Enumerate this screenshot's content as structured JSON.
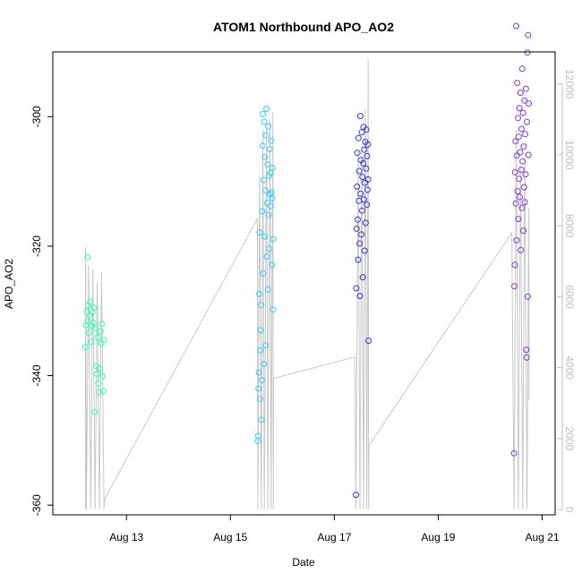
{
  "chart_data": {
    "type": "scatter",
    "title": "ATOM1 Northbound APO_AO2",
    "xlabel": "Date",
    "ylabel": "APO_AO2",
    "xlim": [
      "2017-08-11T14:00",
      "2017-08-21T06:00"
    ],
    "ylim": [
      -361.5,
      -290
    ],
    "y2lim": [
      -150,
      12900
    ],
    "x_ticks": [
      {
        "date": "2017-08-13",
        "label": "Aug 13"
      },
      {
        "date": "2017-08-15",
        "label": "Aug 15"
      },
      {
        "date": "2017-08-17",
        "label": "Aug 17"
      },
      {
        "date": "2017-08-19",
        "label": "Aug 19"
      },
      {
        "date": "2017-08-21",
        "label": "Aug 21"
      }
    ],
    "y_ticks": [
      -360,
      -340,
      -320,
      -300
    ],
    "y2_ticks": [
      0,
      2000,
      4000,
      6000,
      8000,
      10000,
      12000
    ],
    "grid": false,
    "series": [
      {
        "color": "#33ffbb",
        "marker": "circle",
        "points": [
          {
            "x": "2017-08-12T05:00",
            "y": -335.6
          },
          {
            "x": "2017-08-12T05:20",
            "y": -332.2
          },
          {
            "x": "2017-08-12T05:40",
            "y": -330.1
          },
          {
            "x": "2017-08-12T06:00",
            "y": -321.7
          },
          {
            "x": "2017-08-12T06:10",
            "y": -331.6
          },
          {
            "x": "2017-08-12T06:20",
            "y": -329.2
          },
          {
            "x": "2017-08-12T06:40",
            "y": -333.4
          },
          {
            "x": "2017-08-12T07:00",
            "y": -330.7
          },
          {
            "x": "2017-08-12T07:20",
            "y": -328.6
          },
          {
            "x": "2017-08-12T07:40",
            "y": -334.8
          },
          {
            "x": "2017-08-12T08:00",
            "y": -332.3
          },
          {
            "x": "2017-08-12T08:20",
            "y": -330.2
          },
          {
            "x": "2017-08-12T08:40",
            "y": -331.8
          },
          {
            "x": "2017-08-12T09:00",
            "y": -329.5
          },
          {
            "x": "2017-08-12T09:20",
            "y": -345.6
          },
          {
            "x": "2017-08-12T09:40",
            "y": -332.7
          },
          {
            "x": "2017-08-12T10:00",
            "y": -338.5
          },
          {
            "x": "2017-08-12T10:20",
            "y": -339.7
          },
          {
            "x": "2017-08-12T10:40",
            "y": -334.1
          },
          {
            "x": "2017-08-12T11:00",
            "y": -341.2
          },
          {
            "x": "2017-08-12T11:20",
            "y": -342.6
          },
          {
            "x": "2017-08-12T11:40",
            "y": -338.9
          },
          {
            "x": "2017-08-12T12:00",
            "y": -333.2
          },
          {
            "x": "2017-08-12T12:20",
            "y": -335.0
          },
          {
            "x": "2017-08-12T12:40",
            "y": -332.0
          },
          {
            "x": "2017-08-12T13:00",
            "y": -340.1
          },
          {
            "x": "2017-08-12T13:20",
            "y": -342.4
          },
          {
            "x": "2017-08-12T13:40",
            "y": -334.5
          }
        ]
      },
      {
        "color": "#33ccff",
        "marker": "circle",
        "points": [
          {
            "x": "2017-08-15T12:40",
            "y": -350.1
          },
          {
            "x": "2017-08-15T12:50",
            "y": -349.3
          },
          {
            "x": "2017-08-15T13:00",
            "y": -342.0
          },
          {
            "x": "2017-08-15T13:10",
            "y": -339.5
          },
          {
            "x": "2017-08-15T13:20",
            "y": -327.4
          },
          {
            "x": "2017-08-15T13:30",
            "y": -317.9
          },
          {
            "x": "2017-08-15T13:40",
            "y": -343.6
          },
          {
            "x": "2017-08-15T13:50",
            "y": -336.1
          },
          {
            "x": "2017-08-15T14:00",
            "y": -333.0
          },
          {
            "x": "2017-08-15T14:10",
            "y": -329.1
          },
          {
            "x": "2017-08-15T14:20",
            "y": -346.8
          },
          {
            "x": "2017-08-15T14:30",
            "y": -340.7
          },
          {
            "x": "2017-08-15T14:40",
            "y": -314.6
          },
          {
            "x": "2017-08-15T14:50",
            "y": -304.5
          },
          {
            "x": "2017-08-15T15:00",
            "y": -299.6
          },
          {
            "x": "2017-08-15T15:10",
            "y": -324.2
          },
          {
            "x": "2017-08-15T15:20",
            "y": -309.8
          },
          {
            "x": "2017-08-15T15:30",
            "y": -338.2
          },
          {
            "x": "2017-08-15T15:40",
            "y": -300.8
          },
          {
            "x": "2017-08-15T15:50",
            "y": -318.5
          },
          {
            "x": "2017-08-15T16:00",
            "y": -306.2
          },
          {
            "x": "2017-08-15T16:10",
            "y": -311.4
          },
          {
            "x": "2017-08-15T16:20",
            "y": -335.3
          },
          {
            "x": "2017-08-15T16:30",
            "y": -302.9
          },
          {
            "x": "2017-08-15T16:40",
            "y": -298.8
          },
          {
            "x": "2017-08-15T16:50",
            "y": -321.6
          },
          {
            "x": "2017-08-15T17:00",
            "y": -313.3
          },
          {
            "x": "2017-08-15T17:10",
            "y": -307.4
          },
          {
            "x": "2017-08-15T17:20",
            "y": -326.7
          },
          {
            "x": "2017-08-15T17:30",
            "y": -301.5
          },
          {
            "x": "2017-08-15T17:40",
            "y": -315.2
          },
          {
            "x": "2017-08-15T17:50",
            "y": -309.1
          },
          {
            "x": "2017-08-15T18:00",
            "y": -320.4
          },
          {
            "x": "2017-08-15T18:10",
            "y": -305.0
          },
          {
            "x": "2017-08-15T18:20",
            "y": -312.0
          },
          {
            "x": "2017-08-15T18:30",
            "y": -308.7
          },
          {
            "x": "2017-08-15T18:40",
            "y": -313.8
          },
          {
            "x": "2017-08-15T18:50",
            "y": -303.7
          },
          {
            "x": "2017-08-15T19:00",
            "y": -311.7
          },
          {
            "x": "2017-08-15T19:10",
            "y": -322.9
          },
          {
            "x": "2017-08-15T19:20",
            "y": -312.6
          },
          {
            "x": "2017-08-15T19:30",
            "y": -307.9
          },
          {
            "x": "2017-08-15T19:40",
            "y": -329.8
          },
          {
            "x": "2017-08-15T19:50",
            "y": -318.9
          }
        ]
      },
      {
        "color": "#3333ee",
        "marker": "circle",
        "points": [
          {
            "x": "2017-08-17T10:00",
            "y": -358.4
          },
          {
            "x": "2017-08-17T10:10",
            "y": -326.5
          },
          {
            "x": "2017-08-17T10:20",
            "y": -317.3
          },
          {
            "x": "2017-08-17T10:30",
            "y": -310.8
          },
          {
            "x": "2017-08-17T10:40",
            "y": -305.6
          },
          {
            "x": "2017-08-17T10:50",
            "y": -315.9
          },
          {
            "x": "2017-08-17T11:00",
            "y": -322.1
          },
          {
            "x": "2017-08-17T11:10",
            "y": -303.3
          },
          {
            "x": "2017-08-17T11:20",
            "y": -313.0
          },
          {
            "x": "2017-08-17T11:30",
            "y": -308.4
          },
          {
            "x": "2017-08-17T11:40",
            "y": -319.6
          },
          {
            "x": "2017-08-17T11:50",
            "y": -327.7
          },
          {
            "x": "2017-08-17T12:00",
            "y": -299.9
          },
          {
            "x": "2017-08-17T12:10",
            "y": -311.9
          },
          {
            "x": "2017-08-17T12:20",
            "y": -306.7
          },
          {
            "x": "2017-08-17T12:30",
            "y": -318.2
          },
          {
            "x": "2017-08-17T12:40",
            "y": -302.4
          },
          {
            "x": "2017-08-17T12:50",
            "y": -314.5
          },
          {
            "x": "2017-08-17T13:00",
            "y": -309.3
          },
          {
            "x": "2017-08-17T13:10",
            "y": -324.8
          },
          {
            "x": "2017-08-17T13:20",
            "y": -307.2
          },
          {
            "x": "2017-08-17T13:30",
            "y": -301.6
          },
          {
            "x": "2017-08-17T13:40",
            "y": -312.8
          },
          {
            "x": "2017-08-17T13:50",
            "y": -305.1
          },
          {
            "x": "2017-08-17T14:00",
            "y": -320.7
          },
          {
            "x": "2017-08-17T14:10",
            "y": -310.2
          },
          {
            "x": "2017-08-17T14:20",
            "y": -303.9
          },
          {
            "x": "2017-08-17T14:30",
            "y": -316.4
          },
          {
            "x": "2017-08-17T14:40",
            "y": -308.0
          },
          {
            "x": "2017-08-17T14:50",
            "y": -302.0
          },
          {
            "x": "2017-08-17T15:00",
            "y": -313.6
          },
          {
            "x": "2017-08-17T15:10",
            "y": -306.1
          },
          {
            "x": "2017-08-17T15:20",
            "y": -311.3
          },
          {
            "x": "2017-08-17T15:30",
            "y": -304.3
          },
          {
            "x": "2017-08-17T15:40",
            "y": -309.7
          },
          {
            "x": "2017-08-17T15:50",
            "y": -334.6
          }
        ]
      },
      {
        "color": "#8833ee",
        "marker": "circle",
        "points": [
          {
            "x": "2017-08-20T11:00",
            "y": -352.0
          },
          {
            "x": "2017-08-20T11:10",
            "y": -326.2
          },
          {
            "x": "2017-08-20T11:20",
            "y": -322.9
          },
          {
            "x": "2017-08-20T11:30",
            "y": -308.6
          },
          {
            "x": "2017-08-20T11:40",
            "y": -303.8
          },
          {
            "x": "2017-08-20T11:50",
            "y": -313.4
          },
          {
            "x": "2017-08-20T12:00",
            "y": -286.0
          },
          {
            "x": "2017-08-20T12:10",
            "y": -319.1
          },
          {
            "x": "2017-08-20T12:20",
            "y": -306.0
          },
          {
            "x": "2017-08-20T12:30",
            "y": -294.8
          },
          {
            "x": "2017-08-20T12:40",
            "y": -311.5
          },
          {
            "x": "2017-08-20T12:50",
            "y": -300.2
          },
          {
            "x": "2017-08-20T13:00",
            "y": -315.8
          },
          {
            "x": "2017-08-20T13:10",
            "y": -303.1
          },
          {
            "x": "2017-08-20T13:20",
            "y": -309.6
          },
          {
            "x": "2017-08-20T13:30",
            "y": -298.7
          },
          {
            "x": "2017-08-20T13:40",
            "y": -312.4
          },
          {
            "x": "2017-08-20T13:50",
            "y": -305.5
          },
          {
            "x": "2017-08-20T14:00",
            "y": -296.3
          },
          {
            "x": "2017-08-20T14:10",
            "y": -320.6
          },
          {
            "x": "2017-08-20T14:20",
            "y": -308.2
          },
          {
            "x": "2017-08-20T14:30",
            "y": -301.9
          },
          {
            "x": "2017-08-20T14:40",
            "y": -314.1
          },
          {
            "x": "2017-08-20T14:50",
            "y": -292.6
          },
          {
            "x": "2017-08-20T15:00",
            "y": -306.9
          },
          {
            "x": "2017-08-20T15:10",
            "y": -299.4
          },
          {
            "x": "2017-08-20T15:20",
            "y": -317.6
          },
          {
            "x": "2017-08-20T15:30",
            "y": -304.6
          },
          {
            "x": "2017-08-20T15:40",
            "y": -310.9
          },
          {
            "x": "2017-08-20T15:50",
            "y": -297.5
          },
          {
            "x": "2017-08-20T16:00",
            "y": -313.2
          },
          {
            "x": "2017-08-20T16:10",
            "y": -302.7
          },
          {
            "x": "2017-08-20T16:20",
            "y": -308.9
          },
          {
            "x": "2017-08-20T16:30",
            "y": -295.7
          },
          {
            "x": "2017-08-20T16:40",
            "y": -336.0
          },
          {
            "x": "2017-08-20T16:50",
            "y": -337.2
          },
          {
            "x": "2017-08-20T17:00",
            "y": -300.8
          },
          {
            "x": "2017-08-20T17:10",
            "y": -290.1
          },
          {
            "x": "2017-08-20T17:20",
            "y": -327.8
          },
          {
            "x": "2017-08-20T17:30",
            "y": -287.4
          },
          {
            "x": "2017-08-20T17:40",
            "y": -305.9
          },
          {
            "x": "2017-08-20T17:50",
            "y": -298.0
          }
        ]
      }
    ],
    "gray_trace": {
      "color": "#c8c8c8",
      "points": [
        {
          "x": "2017-08-12T05:00",
          "y2": 11
        },
        {
          "x": "2017-08-12T05:10",
          "y2": 7400
        },
        {
          "x": "2017-08-12T05:30",
          "y2": 11
        },
        {
          "x": "2017-08-12T06:30",
          "y2": 6900
        },
        {
          "x": "2017-08-12T07:30",
          "y2": 11
        },
        {
          "x": "2017-08-12T08:30",
          "y2": 6800
        },
        {
          "x": "2017-08-12T09:30",
          "y2": 11
        },
        {
          "x": "2017-08-12T10:30",
          "y2": 6400
        },
        {
          "x": "2017-08-12T11:30",
          "y2": 11
        },
        {
          "x": "2017-08-12T12:30",
          "y2": 6700
        },
        {
          "x": "2017-08-12T13:40",
          "y2": 11
        },
        {
          "x": "2017-08-12T14:00",
          "y2": 300
        },
        {
          "x": "2017-08-15T12:30",
          "y2": 8200
        },
        {
          "x": "2017-08-15T12:40",
          "y2": 11
        },
        {
          "x": "2017-08-15T13:30",
          "y2": 9400
        },
        {
          "x": "2017-08-15T14:20",
          "y2": 11
        },
        {
          "x": "2017-08-15T15:00",
          "y2": 10700
        },
        {
          "x": "2017-08-15T15:40",
          "y2": 11
        },
        {
          "x": "2017-08-15T16:40",
          "y2": 10800
        },
        {
          "x": "2017-08-15T17:20",
          "y2": 11
        },
        {
          "x": "2017-08-15T18:20",
          "y2": 11000
        },
        {
          "x": "2017-08-15T18:50",
          "y2": 11
        },
        {
          "x": "2017-08-15T19:40",
          "y2": 11200
        },
        {
          "x": "2017-08-15T19:50",
          "y2": 11
        },
        {
          "x": "2017-08-15T20:00",
          "y2": 3700
        },
        {
          "x": "2017-08-17T09:30",
          "y2": 4300
        },
        {
          "x": "2017-08-17T10:00",
          "y2": 11
        },
        {
          "x": "2017-08-17T11:00",
          "y2": 10100
        },
        {
          "x": "2017-08-17T11:50",
          "y2": 11
        },
        {
          "x": "2017-08-17T12:40",
          "y2": 10300
        },
        {
          "x": "2017-08-17T13:30",
          "y2": 11
        },
        {
          "x": "2017-08-17T14:20",
          "y2": 11300
        },
        {
          "x": "2017-08-17T15:00",
          "y2": 11
        },
        {
          "x": "2017-08-17T15:40",
          "y2": 12700
        },
        {
          "x": "2017-08-17T15:50",
          "y2": 11
        },
        {
          "x": "2017-08-17T16:00",
          "y2": 1800
        },
        {
          "x": "2017-08-20T10:00",
          "y2": 7800
        },
        {
          "x": "2017-08-20T11:00",
          "y2": 11
        },
        {
          "x": "2017-08-20T12:00",
          "y2": 10700
        },
        {
          "x": "2017-08-20T13:00",
          "y2": 11
        },
        {
          "x": "2017-08-20T14:00",
          "y2": 9700
        },
        {
          "x": "2017-08-20T15:00",
          "y2": 11
        },
        {
          "x": "2017-08-20T16:00",
          "y2": 9900
        },
        {
          "x": "2017-08-20T17:00",
          "y2": 11
        },
        {
          "x": "2017-08-20T17:50",
          "y2": 8500
        },
        {
          "x": "2017-08-20T18:00",
          "y2": 3100
        }
      ]
    }
  }
}
